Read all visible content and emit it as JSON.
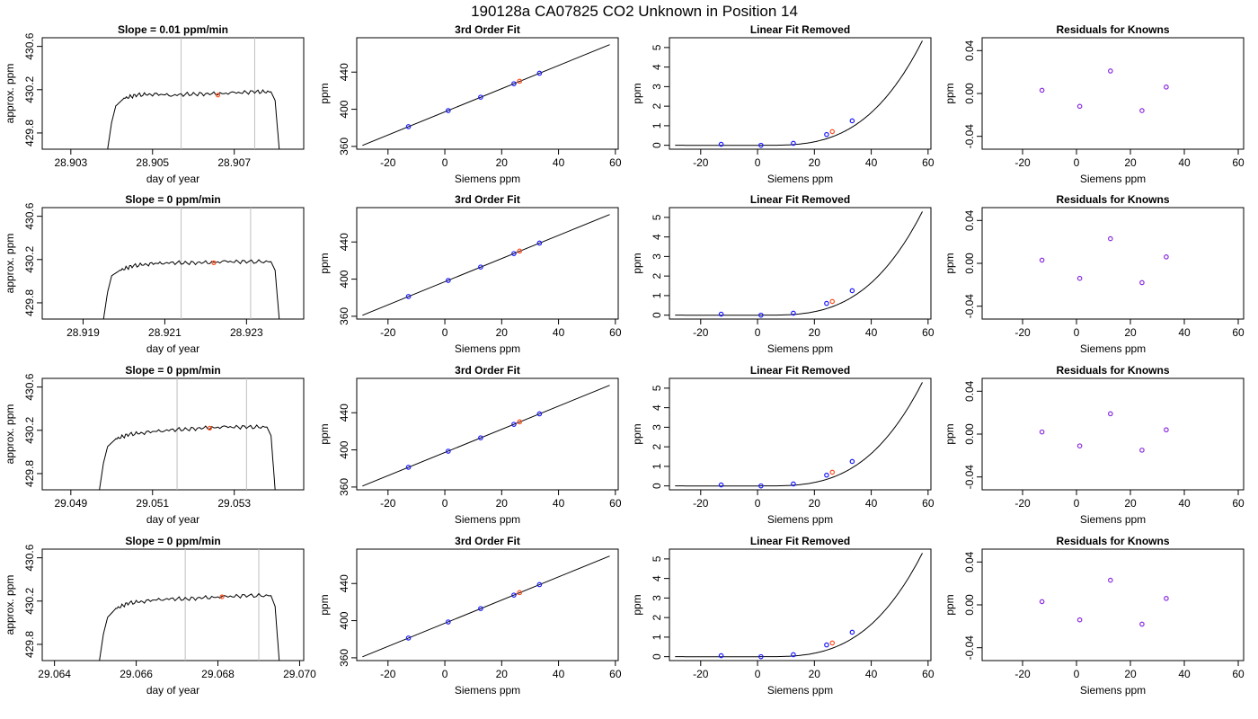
{
  "main_title": "190128a      CA07825    CO2 Unknown in Position  14",
  "colors": {
    "known_point": "#1a1aff",
    "unknown_point": "#ff4d1a",
    "residual_point": "#8a2be2",
    "trace": "#000000",
    "window_line": "#bfbfbf"
  },
  "chart_data": [
    {
      "row": 1,
      "panels": [
        {
          "type": "line",
          "title": "Slope =  0.01  ppm/min",
          "xlabel": "day of year",
          "ylabel": "approx. ppm",
          "xticks": [
            "28.903",
            "28.905",
            "28.907"
          ],
          "yticks": [
            "429.8",
            "430.2",
            "430.6"
          ],
          "xlim": [
            28.9023,
            28.9087
          ],
          "ylim": [
            429.65,
            430.68
          ],
          "window": [
            28.9057,
            28.9075
          ],
          "series": {
            "x": [
              28.9039,
              28.904,
              28.9041,
              28.9043,
              28.9046,
              28.905,
              28.9055,
              28.906,
              28.9065,
              28.907,
              28.9075,
              28.9079,
              28.908,
              28.9081
            ],
            "y": [
              429.65,
              429.9,
              430.05,
              430.12,
              430.15,
              430.16,
              430.15,
              430.16,
              430.16,
              430.17,
              430.18,
              430.18,
              430.1,
              429.65
            ]
          },
          "marker": {
            "x": 28.9066,
            "y": 430.15
          }
        },
        {
          "type": "line",
          "title": "3rd Order Fit",
          "xlabel": "Siemens ppm",
          "ylabel": "ppm",
          "xticks": [
            "-20",
            "0",
            "20",
            "40",
            "60"
          ],
          "yticks": [
            "360",
            "400",
            "440"
          ],
          "xlim": [
            -31,
            61
          ],
          "ylim": [
            357,
            477
          ],
          "fit_range": [
            -29,
            58
          ],
          "knowns": {
            "x": [
              -12.8,
              1.2,
              12.6,
              24.3,
              33.3
            ],
            "y": [
              381.3,
              398.6,
              413.0,
              427.5,
              438.8
            ]
          },
          "unknown": {
            "x": 26.3,
            "y": 430.2
          }
        },
        {
          "type": "line",
          "title": "Linear Fit Removed",
          "xlabel": "Siemens ppm",
          "ylabel": "ppm",
          "xticks": [
            "-20",
            "0",
            "20",
            "40",
            "60"
          ],
          "yticks": [
            "0",
            "1",
            "2",
            "3",
            "4",
            "5"
          ],
          "xlim": [
            -31,
            61
          ],
          "ylim": [
            -0.2,
            5.5
          ],
          "curve_endpoints": [
            -29,
            58,
            5.35
          ],
          "knowns": {
            "x": [
              -12.8,
              1.2,
              12.6,
              24.3,
              33.3
            ],
            "y": [
              0.05,
              0.0,
              0.1,
              0.55,
              1.25
            ]
          },
          "unknown": {
            "x": 26.3,
            "y": 0.7
          }
        },
        {
          "type": "scatter",
          "title": "Residuals for Knowns",
          "xlabel": "Siemens ppm",
          "ylabel": "ppm",
          "xticks": [
            "-20",
            "0",
            "20",
            "40",
            "60"
          ],
          "yticks": [
            "-0.04",
            "0.00",
            "0.04"
          ],
          "xlim": [
            -35,
            62
          ],
          "ylim": [
            -0.052,
            0.052
          ],
          "x": [
            -12.8,
            1.2,
            12.6,
            24.3,
            33.3
          ],
          "y": [
            0.003,
            -0.012,
            0.021,
            -0.016,
            0.006
          ]
        }
      ]
    },
    {
      "row": 2,
      "panels": [
        {
          "type": "line",
          "title": "Slope =  0  ppm/min",
          "xlabel": "day of year",
          "ylabel": "approx. ppm",
          "xticks": [
            "28.919",
            "28.921",
            "28.923"
          ],
          "yticks": [
            "429.8",
            "430.2",
            "430.6"
          ],
          "xlim": [
            28.918,
            28.9244
          ],
          "ylim": [
            429.65,
            430.68
          ],
          "window": [
            28.9214,
            28.9231
          ],
          "series": {
            "x": [
              28.9195,
              28.9196,
              28.9197,
              28.9199,
              28.9202,
              28.9206,
              28.921,
              28.9215,
              28.922,
              28.9225,
              28.923,
              28.9236,
              28.9237,
              28.9238
            ],
            "y": [
              429.65,
              429.9,
              430.05,
              430.1,
              430.14,
              430.16,
              430.17,
              430.17,
              430.17,
              430.18,
              430.18,
              430.18,
              430.1,
              429.65
            ]
          },
          "marker": {
            "x": 28.9222,
            "y": 430.17
          }
        },
        {
          "type": "line",
          "title": "3rd Order Fit",
          "xlabel": "Siemens ppm",
          "ylabel": "ppm",
          "xticks": [
            "-20",
            "0",
            "20",
            "40",
            "60"
          ],
          "yticks": [
            "360",
            "400",
            "440"
          ],
          "xlim": [
            -31,
            61
          ],
          "ylim": [
            357,
            477
          ],
          "fit_range": [
            -29,
            58
          ],
          "knowns": {
            "x": [
              -12.8,
              1.2,
              12.6,
              24.3,
              33.3
            ],
            "y": [
              381.3,
              398.6,
              413.0,
              427.5,
              438.8
            ]
          },
          "unknown": {
            "x": 26.3,
            "y": 430.2
          }
        },
        {
          "type": "line",
          "title": "Linear Fit Removed",
          "xlabel": "Siemens ppm",
          "ylabel": "ppm",
          "xticks": [
            "-20",
            "0",
            "20",
            "40",
            "60"
          ],
          "yticks": [
            "0",
            "1",
            "2",
            "3",
            "4",
            "5"
          ],
          "xlim": [
            -31,
            61
          ],
          "ylim": [
            -0.2,
            5.5
          ],
          "curve_endpoints": [
            -29,
            58,
            5.3
          ],
          "knowns": {
            "x": [
              -12.8,
              1.2,
              12.6,
              24.3,
              33.3
            ],
            "y": [
              0.05,
              0.0,
              0.1,
              0.6,
              1.25
            ]
          },
          "unknown": {
            "x": 26.3,
            "y": 0.7
          }
        },
        {
          "type": "scatter",
          "title": "Residuals for Knowns",
          "xlabel": "Siemens ppm",
          "ylabel": "ppm",
          "xticks": [
            "-20",
            "0",
            "20",
            "40",
            "60"
          ],
          "yticks": [
            "-0.04",
            "0.00",
            "0.04"
          ],
          "xlim": [
            -35,
            62
          ],
          "ylim": [
            -0.052,
            0.052
          ],
          "x": [
            -12.8,
            1.2,
            12.6,
            24.3,
            33.3
          ],
          "y": [
            0.003,
            -0.014,
            0.023,
            -0.018,
            0.006
          ]
        }
      ]
    },
    {
      "row": 3,
      "panels": [
        {
          "type": "line",
          "title": "Slope =  0  ppm/min",
          "xlabel": "day of year",
          "ylabel": "approx. ppm",
          "xticks": [
            "29.049",
            "29.051",
            "29.053"
          ],
          "yticks": [
            "429.8",
            "430.2",
            "430.6"
          ],
          "xlim": [
            29.0483,
            29.0547
          ],
          "ylim": [
            429.65,
            430.68
          ],
          "window": [
            29.0516,
            29.0533
          ],
          "series": {
            "x": [
              29.0497,
              29.0498,
              29.0499,
              29.0501,
              29.0504,
              29.0508,
              29.0513,
              29.0518,
              29.0523,
              29.0528,
              29.0533,
              29.0538,
              29.0539,
              29.054
            ],
            "y": [
              429.65,
              429.9,
              430.05,
              430.12,
              430.16,
              430.18,
              430.2,
              430.21,
              430.22,
              430.23,
              430.23,
              430.23,
              430.15,
              429.65
            ]
          },
          "marker": {
            "x": 29.0524,
            "y": 430.22
          }
        },
        {
          "type": "line",
          "title": "3rd Order Fit",
          "xlabel": "Siemens ppm",
          "ylabel": "ppm",
          "xticks": [
            "-20",
            "0",
            "20",
            "40",
            "60"
          ],
          "yticks": [
            "360",
            "400",
            "440"
          ],
          "xlim": [
            -31,
            61
          ],
          "ylim": [
            357,
            477
          ],
          "fit_range": [
            -29,
            58
          ],
          "knowns": {
            "x": [
              -12.8,
              1.2,
              12.6,
              24.3,
              33.3
            ],
            "y": [
              381.3,
              398.6,
              413.0,
              427.5,
              438.8
            ]
          },
          "unknown": {
            "x": 26.3,
            "y": 430.2
          }
        },
        {
          "type": "line",
          "title": "Linear Fit Removed",
          "xlabel": "Siemens ppm",
          "ylabel": "ppm",
          "xticks": [
            "-20",
            "0",
            "20",
            "40",
            "60"
          ],
          "yticks": [
            "0",
            "1",
            "2",
            "3",
            "4",
            "5"
          ],
          "xlim": [
            -31,
            61
          ],
          "ylim": [
            -0.2,
            5.5
          ],
          "curve_endpoints": [
            -29,
            58,
            5.3
          ],
          "knowns": {
            "x": [
              -12.8,
              1.2,
              12.6,
              24.3,
              33.3
            ],
            "y": [
              0.05,
              0.0,
              0.1,
              0.55,
              1.25
            ]
          },
          "unknown": {
            "x": 26.3,
            "y": 0.7
          }
        },
        {
          "type": "scatter",
          "title": "Residuals for Knowns",
          "xlabel": "Siemens ppm",
          "ylabel": "ppm",
          "xticks": [
            "-20",
            "0",
            "20",
            "40",
            "60"
          ],
          "yticks": [
            "-0.04",
            "0.00",
            "0.04"
          ],
          "xlim": [
            -35,
            62
          ],
          "ylim": [
            -0.052,
            0.052
          ],
          "x": [
            -12.8,
            1.2,
            12.6,
            24.3,
            33.3
          ],
          "y": [
            0.002,
            -0.011,
            0.019,
            -0.015,
            0.004
          ]
        }
      ]
    },
    {
      "row": 4,
      "panels": [
        {
          "type": "line",
          "title": "Slope =  0  ppm/min",
          "xlabel": "day of year",
          "ylabel": "approx. ppm",
          "xticks": [
            "29.064",
            "29.066",
            "29.068",
            "29.070"
          ],
          "yticks": [
            "429.8",
            "430.2",
            "430.6"
          ],
          "xlim": [
            29.0637,
            29.0701
          ],
          "ylim": [
            429.65,
            430.68
          ],
          "window": [
            29.0672,
            29.069
          ],
          "series": {
            "x": [
              29.0651,
              29.0652,
              29.0653,
              29.0655,
              29.0658,
              29.0662,
              29.0667,
              29.0672,
              29.0677,
              29.0682,
              29.0687,
              29.0693,
              29.0694,
              29.0695
            ],
            "y": [
              429.65,
              429.9,
              430.05,
              430.13,
              430.18,
              430.2,
              430.22,
              430.22,
              430.23,
              430.24,
              430.25,
              430.25,
              430.15,
              429.65
            ]
          },
          "marker": {
            "x": 29.0681,
            "y": 430.24
          }
        },
        {
          "type": "line",
          "title": "3rd Order Fit",
          "xlabel": "Siemens ppm",
          "ylabel": "ppm",
          "xticks": [
            "-20",
            "0",
            "20",
            "40",
            "60"
          ],
          "yticks": [
            "360",
            "400",
            "440"
          ],
          "xlim": [
            -31,
            61
          ],
          "ylim": [
            357,
            477
          ],
          "fit_range": [
            -29,
            58
          ],
          "knowns": {
            "x": [
              -12.8,
              1.2,
              12.6,
              24.3,
              33.3
            ],
            "y": [
              381.3,
              398.6,
              413.0,
              427.5,
              438.8
            ]
          },
          "unknown": {
            "x": 26.3,
            "y": 430.2
          }
        },
        {
          "type": "line",
          "title": "Linear Fit Removed",
          "xlabel": "Siemens ppm",
          "ylabel": "ppm",
          "xticks": [
            "-20",
            "0",
            "20",
            "40",
            "60"
          ],
          "yticks": [
            "0",
            "1",
            "2",
            "3",
            "4",
            "5"
          ],
          "xlim": [
            -31,
            61
          ],
          "ylim": [
            -0.2,
            5.5
          ],
          "curve_endpoints": [
            -29,
            58,
            5.3
          ],
          "knowns": {
            "x": [
              -12.8,
              1.2,
              12.6,
              24.3,
              33.3
            ],
            "y": [
              0.05,
              0.0,
              0.1,
              0.6,
              1.25
            ]
          },
          "unknown": {
            "x": 26.3,
            "y": 0.7
          }
        },
        {
          "type": "scatter",
          "title": "Residuals for Knowns",
          "xlabel": "Siemens ppm",
          "ylabel": "ppm",
          "xticks": [
            "-20",
            "0",
            "20",
            "40",
            "60"
          ],
          "yticks": [
            "-0.04",
            "0.00",
            "0.04"
          ],
          "xlim": [
            -35,
            62
          ],
          "ylim": [
            -0.052,
            0.052
          ],
          "x": [
            -12.8,
            1.2,
            12.6,
            24.3,
            33.3
          ],
          "y": [
            0.003,
            -0.014,
            0.023,
            -0.018,
            0.006
          ]
        }
      ]
    }
  ]
}
